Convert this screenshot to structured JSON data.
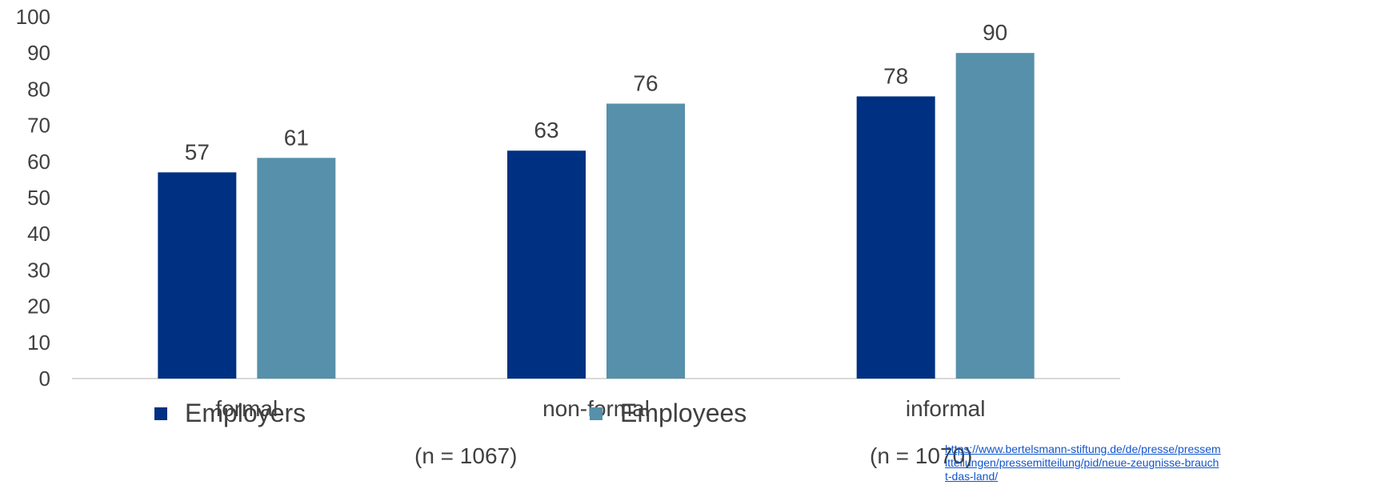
{
  "chart_data": {
    "type": "bar",
    "categories": [
      "formal",
      "non-formal",
      "informal"
    ],
    "series": [
      {
        "name": "Employers",
        "values": [
          57,
          63,
          78
        ],
        "color": "#003082"
      },
      {
        "name": "Employees",
        "values": [
          61,
          76,
          90
        ],
        "color": "#5690aa"
      }
    ],
    "ylim": [
      0,
      100
    ],
    "yticks": [
      0,
      10,
      20,
      30,
      40,
      50,
      60,
      70,
      80,
      90,
      100
    ],
    "grid": false,
    "legend_position": "bottom"
  },
  "legend": {
    "employers_label": "Employers",
    "employers_n": "(n = 1067)",
    "employees_label": "Employees",
    "employees_n": "(n = 1070)"
  },
  "source_link": "https://www.bertelsmann-stiftung.de/de/presse/pressemitteilungen/pressemitteilung/pid/neue-zeugnisse-braucht-das-land/"
}
